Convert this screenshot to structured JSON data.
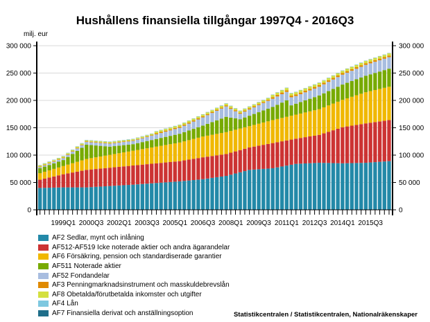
{
  "chart_data": {
    "type": "bar",
    "stacked": true,
    "title": "Hushållens finansiella tillgångar 1997Q4 - 2016Q3",
    "ylabel": "milj. eur",
    "ylim": [
      0,
      300000
    ],
    "yticks": [
      0,
      50000,
      100000,
      150000,
      200000,
      250000,
      300000
    ],
    "ytick_labels": [
      "0",
      "50 000",
      "100 000",
      "150 000",
      "200 000",
      "250 000",
      "300 000"
    ],
    "start_quarter": "1997Q4",
    "xtick_labels": [
      {
        "index": 5,
        "label": "1999Q1"
      },
      {
        "index": 11,
        "label": "2000Q3"
      },
      {
        "index": 17,
        "label": "2002Q1"
      },
      {
        "index": 23,
        "label": "2003Q3"
      },
      {
        "index": 29,
        "label": "2005Q1"
      },
      {
        "index": 35,
        "label": "2006Q3"
      },
      {
        "index": 41,
        "label": "2008Q1"
      },
      {
        "index": 47,
        "label": "2009Q3"
      },
      {
        "index": 53,
        "label": "2011Q1"
      },
      {
        "index": 59,
        "label": "2012Q3"
      },
      {
        "index": 65,
        "label": "2014Q1"
      },
      {
        "index": 71,
        "label": "2015Q3"
      }
    ],
    "grid": true,
    "legend_placement": "bottom-left",
    "series": [
      {
        "name": "AF2 Sedlar, mynt och inlåning",
        "color": "#2389a8",
        "values": [
          40000,
          40200,
          40400,
          40600,
          40800,
          41000,
          41000,
          41000,
          41000,
          41000,
          41000,
          41500,
          42000,
          42500,
          43000,
          43500,
          44000,
          44500,
          45000,
          45500,
          46000,
          46600,
          47200,
          47800,
          48400,
          49000,
          49600,
          50200,
          50800,
          51400,
          52000,
          52800,
          53600,
          54400,
          55200,
          56000,
          57200,
          58400,
          59600,
          60800,
          62000,
          64200,
          66400,
          68600,
          70800,
          73000,
          73600,
          74200,
          74800,
          75400,
          76000,
          77600,
          79200,
          80800,
          82400,
          84000,
          84400,
          84800,
          85200,
          85600,
          86000,
          85800,
          85600,
          85400,
          85200,
          85000,
          85200,
          85400,
          85600,
          85800,
          86000,
          86600,
          87200,
          87800,
          88400,
          89000
        ]
      },
      {
        "name": "AF512-AF519 Icke noterade aktier och andra ägarandelar",
        "color": "#cc3333",
        "values": [
          15000,
          16800,
          18600,
          20400,
          22200,
          24000,
          25600,
          27200,
          28800,
          30400,
          32000,
          32300,
          32600,
          32900,
          33200,
          33500,
          33800,
          34100,
          34400,
          34700,
          35000,
          35200,
          35400,
          35600,
          35800,
          36000,
          36200,
          36400,
          36600,
          36800,
          37000,
          37600,
          38200,
          38800,
          39400,
          40000,
          40000,
          40000,
          40000,
          40000,
          40000,
          40200,
          40400,
          40600,
          40800,
          41000,
          42000,
          43000,
          44000,
          45000,
          46000,
          46000,
          46000,
          46000,
          46000,
          46000,
          47000,
          48000,
          49000,
          50000,
          51000,
          54000,
          57000,
          60000,
          63000,
          66000,
          67200,
          68400,
          69600,
          70800,
          72000,
          72600,
          73200,
          73800,
          74400,
          75000
        ]
      },
      {
        "name": "AF6 Försäkring, pension och standardiserade garantier",
        "color": "#f0b800",
        "values": [
          12000,
          12600,
          13200,
          13800,
          14400,
          15000,
          16000,
          17000,
          18000,
          19000,
          20000,
          20700,
          21400,
          22100,
          22800,
          23500,
          24200,
          24900,
          25600,
          26300,
          27000,
          27700,
          28400,
          29100,
          29800,
          30500,
          31200,
          31900,
          32600,
          33300,
          34000,
          34800,
          35600,
          36400,
          37200,
          38000,
          38400,
          38800,
          39200,
          39600,
          40000,
          39800,
          39600,
          39400,
          39200,
          39000,
          39600,
          40200,
          40800,
          41400,
          42000,
          42400,
          42800,
          43200,
          43600,
          44000,
          44600,
          45200,
          45800,
          46400,
          47000,
          47600,
          48200,
          48800,
          49400,
          50000,
          51400,
          52800,
          54200,
          55600,
          57000,
          57800,
          58600,
          59400,
          60200,
          61000
        ]
      },
      {
        "name": "AF511 Noterade aktier",
        "color": "#77aa00",
        "values": [
          9000,
          9400,
          9800,
          10200,
          10600,
          11000,
          14000,
          17000,
          20000,
          23000,
          26000,
          23800,
          21600,
          19400,
          17200,
          15000,
          14400,
          13800,
          13200,
          12600,
          12000,
          12400,
          12800,
          13200,
          13600,
          14000,
          14400,
          14800,
          15200,
          15600,
          16000,
          16800,
          17600,
          18400,
          19200,
          20000,
          21600,
          23200,
          24800,
          26400,
          28000,
          24300,
          20700,
          17000,
          18000,
          19000,
          20000,
          21000,
          22000,
          23000,
          24000,
          26000,
          28000,
          30000,
          19000,
          20000,
          21000,
          22000,
          23000,
          24000,
          25000,
          25600,
          26200,
          26800,
          27400,
          28000,
          28400,
          28800,
          29200,
          29600,
          30000,
          30600,
          31200,
          31800,
          32400,
          33000
        ]
      },
      {
        "name": "AF52 Fondandelar",
        "color": "#a8bde0",
        "values": [
          2000,
          2300,
          2600,
          2900,
          3200,
          3500,
          3800,
          4100,
          4400,
          4700,
          5000,
          5100,
          5200,
          5300,
          5400,
          5500,
          5600,
          5700,
          5800,
          5900,
          6000,
          6500,
          7000,
          7500,
          8000,
          8500,
          9000,
          9500,
          10000,
          10500,
          11000,
          11800,
          12600,
          13400,
          14200,
          15000,
          15800,
          16600,
          17400,
          18200,
          19000,
          16000,
          13000,
          10000,
          10700,
          11400,
          12100,
          12900,
          13600,
          14300,
          15000,
          15200,
          15400,
          15600,
          14800,
          14000,
          14400,
          14800,
          15200,
          15600,
          16000,
          16400,
          16800,
          17200,
          17600,
          18000,
          18400,
          18800,
          19200,
          19600,
          20000,
          20200,
          20400,
          20600,
          20800,
          21000
        ]
      },
      {
        "name": "AF3 Penningmarknadsinstrument och masskuldebrevslån",
        "color": "#e08a00",
        "values": [
          1000,
          1000,
          1000,
          1000,
          1000,
          1000,
          1000,
          1000,
          1000,
          1000,
          1000,
          1000,
          1000,
          1000,
          1000,
          1000,
          1000,
          1000,
          1000,
          1000,
          1000,
          1000,
          1000,
          1000,
          1000,
          2000,
          2000,
          2000,
          2000,
          2000,
          2000,
          2000,
          2000,
          2000,
          2000,
          2000,
          2000,
          2000,
          2000,
          2000,
          2000,
          2000,
          2000,
          2000,
          2000,
          2000,
          2000,
          2000,
          2000,
          2000,
          3000,
          3000,
          3000,
          3000,
          3000,
          3000,
          3000,
          3000,
          3000,
          3000,
          3000,
          3000,
          3000,
          3000,
          3000,
          3000,
          3000,
          3000,
          3000,
          3000,
          3000,
          3000,
          3000,
          3000,
          3000,
          3000
        ]
      },
      {
        "name": "AF8 Obetalda/förutbetalda inkomster och utgifter",
        "color": "#d4e040",
        "values": [
          2000,
          2000,
          2000,
          2000,
          2000,
          2000,
          2000,
          2000,
          2000,
          2000,
          2000,
          2000,
          2000,
          2000,
          2000,
          2000,
          2000,
          2000,
          2000,
          2000,
          2000,
          2000,
          2000,
          2000,
          2000,
          3000,
          3000,
          3000,
          3000,
          3000,
          3000,
          3000,
          3000,
          3000,
          3000,
          3000,
          3000,
          3000,
          3000,
          3000,
          3000,
          3000,
          3000,
          3000,
          3000,
          3000,
          3000,
          3000,
          3000,
          3000,
          4000,
          4000,
          4000,
          4000,
          4000,
          4000,
          4000,
          4000,
          4000,
          4000,
          4000,
          4000,
          4000,
          4000,
          4000,
          4000,
          4000,
          4000,
          4000,
          4000,
          4000,
          4000,
          4000,
          4000,
          4000,
          4000
        ]
      },
      {
        "name": "AF4 Lån",
        "color": "#7ec8e0",
        "values": [
          500,
          500,
          500,
          500,
          500,
          500,
          500,
          500,
          500,
          500,
          500,
          500,
          500,
          500,
          500,
          500,
          500,
          500,
          500,
          500,
          500,
          500,
          500,
          500,
          500,
          500,
          500,
          500,
          500,
          500,
          500,
          500,
          500,
          500,
          500,
          500,
          500,
          500,
          500,
          500,
          500,
          500,
          500,
          500,
          500,
          500,
          500,
          500,
          500,
          500,
          500,
          500,
          500,
          500,
          500,
          500,
          500,
          500,
          500,
          500,
          500,
          500,
          500,
          500,
          500,
          500,
          500,
          500,
          500,
          500,
          500,
          500,
          500,
          500,
          500,
          500
        ]
      },
      {
        "name": "AF7 Finansiella derivat och anställningsoption",
        "color": "#1f6e8a",
        "values": [
          200,
          200,
          200,
          200,
          200,
          200,
          200,
          200,
          200,
          200,
          200,
          200,
          200,
          200,
          200,
          200,
          200,
          200,
          200,
          200,
          200,
          200,
          200,
          200,
          200,
          200,
          200,
          200,
          200,
          200,
          200,
          200,
          200,
          200,
          200,
          200,
          200,
          200,
          200,
          200,
          200,
          200,
          200,
          200,
          200,
          200,
          200,
          200,
          200,
          200,
          200,
          200,
          200,
          200,
          200,
          200,
          200,
          200,
          200,
          200,
          200,
          200,
          200,
          200,
          200,
          200,
          200,
          200,
          200,
          200,
          200,
          200,
          200,
          200,
          200,
          200
        ]
      }
    ],
    "source": "Statistikcentralen / Statistikcentralen, Nationalräkenskaper"
  }
}
